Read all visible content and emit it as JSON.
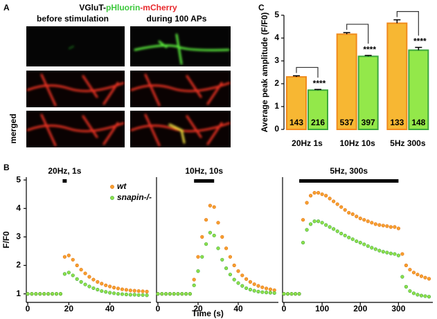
{
  "panel_a": {
    "label": "A",
    "title": [
      {
        "text": "VGluT-",
        "color": "#000000"
      },
      {
        "text": "pHluorin",
        "color": "#3cc83c"
      },
      {
        "text": "-mCherry",
        "color": "#e8262a"
      }
    ],
    "columns": [
      "before stimulation",
      "during 100 APs"
    ],
    "row_label": "merged"
  },
  "chart_data": [
    {
      "type": "bar",
      "panel": "C",
      "ylabel": "Average peak amplitude (F/F0)",
      "categories": [
        "20Hz 1s",
        "10Hz 10s",
        "5Hz 300s"
      ],
      "ylim": [
        0,
        5
      ],
      "yticks": [
        0,
        1,
        2,
        3,
        4,
        5
      ],
      "series": [
        {
          "color": "#f7b733",
          "edge": "#f08a1c",
          "values": [
            2.3,
            4.17,
            4.65
          ],
          "errors": [
            0.05,
            0.07,
            0.15
          ],
          "counts": [
            143,
            537,
            133
          ]
        },
        {
          "color": "#93e84a",
          "edge": "#3ca83c",
          "values": [
            1.72,
            3.2,
            3.47
          ],
          "errors": [
            0.03,
            0.04,
            0.12
          ],
          "counts": [
            216,
            397,
            148
          ]
        }
      ],
      "significance": [
        "****",
        "****",
        "****"
      ]
    },
    {
      "type": "line",
      "panel": "B",
      "ylabel": "F/F0",
      "xlim": [
        0,
        60
      ],
      "xticks": [
        0,
        20,
        40
      ],
      "ylim": [
        0.7,
        5.1
      ],
      "yticks": [
        1,
        2,
        3,
        4,
        5
      ],
      "stimulus": {
        "label": "20Hz, 1s",
        "start": 17,
        "end": 19
      },
      "legend": "top-right",
      "x": [
        0,
        2,
        4,
        6,
        8,
        10,
        12,
        14,
        16,
        18,
        20,
        22,
        24,
        26,
        28,
        30,
        32,
        34,
        36,
        38,
        40,
        42,
        44,
        46,
        48,
        50,
        52,
        54,
        56,
        58
      ],
      "series": [
        {
          "name": "wt",
          "color": "#f7a030",
          "edge": "#e0700c",
          "values": [
            1,
            1,
            1,
            1,
            1,
            1,
            1,
            1,
            1,
            2.3,
            2.35,
            2.2,
            2.0,
            1.85,
            1.72,
            1.6,
            1.5,
            1.42,
            1.36,
            1.3,
            1.26,
            1.22,
            1.19,
            1.16,
            1.14,
            1.12,
            1.11,
            1.1,
            1.09,
            1.08
          ]
        },
        {
          "name": "snapin-/-",
          "color": "#8fe04a",
          "edge": "#3ca83c",
          "values": [
            1,
            1,
            1,
            1,
            1,
            1,
            1,
            1,
            1,
            1.7,
            1.75,
            1.65,
            1.52,
            1.42,
            1.33,
            1.26,
            1.2,
            1.15,
            1.1,
            1.07,
            1.04,
            1.02,
            1.0,
            0.99,
            0.98,
            0.97,
            0.97,
            0.96,
            0.96,
            0.95
          ]
        }
      ]
    },
    {
      "type": "line",
      "xlim": [
        0,
        60
      ],
      "xticks": [
        0,
        20,
        40
      ],
      "ylim": [
        0.7,
        5.1
      ],
      "xlabel": "Time (s)",
      "stimulus": {
        "label": "10Hz, 10s",
        "start": 18,
        "end": 28
      },
      "x": [
        0,
        2,
        4,
        6,
        8,
        10,
        12,
        14,
        16,
        18,
        20,
        22,
        24,
        26,
        28,
        30,
        32,
        34,
        36,
        38,
        40,
        42,
        44,
        46,
        48,
        50,
        52,
        54,
        56,
        58
      ],
      "series": [
        {
          "color": "#f7a030",
          "edge": "#e0700c",
          "values": [
            1,
            1,
            1,
            1,
            1,
            1,
            1,
            1,
            1,
            1.5,
            2.3,
            3.0,
            3.6,
            4.1,
            4.05,
            3.5,
            3.0,
            2.6,
            2.3,
            2.0,
            1.8,
            1.65,
            1.52,
            1.42,
            1.34,
            1.28,
            1.23,
            1.19,
            1.16,
            1.13
          ]
        },
        {
          "color": "#8fe04a",
          "edge": "#3ca83c",
          "values": [
            1,
            1,
            1,
            1,
            1,
            1,
            1,
            1,
            1,
            1.3,
            1.8,
            2.3,
            2.75,
            3.15,
            3.05,
            2.6,
            2.2,
            1.9,
            1.68,
            1.5,
            1.38,
            1.28,
            1.2,
            1.15,
            1.11,
            1.08,
            1.06,
            1.05,
            1.04,
            1.03
          ]
        }
      ]
    },
    {
      "type": "line",
      "xlim": [
        0,
        390
      ],
      "xticks": [
        0,
        100,
        200,
        300
      ],
      "ylim": [
        0.7,
        5.1
      ],
      "stimulus": {
        "label": "5Hz, 300s",
        "start": 40,
        "end": 300
      },
      "x": [
        0,
        10,
        20,
        30,
        40,
        50,
        60,
        70,
        80,
        90,
        100,
        110,
        120,
        130,
        140,
        150,
        160,
        170,
        180,
        190,
        200,
        210,
        220,
        230,
        240,
        250,
        260,
        270,
        280,
        290,
        300,
        310,
        320,
        330,
        340,
        350,
        360,
        370,
        380
      ],
      "series": [
        {
          "color": "#f7a030",
          "edge": "#e0700c",
          "values": [
            1,
            1,
            1,
            1,
            1,
            3.6,
            4.2,
            4.45,
            4.55,
            4.55,
            4.5,
            4.45,
            4.35,
            4.25,
            4.15,
            4.05,
            3.95,
            3.85,
            3.8,
            3.72,
            3.65,
            3.6,
            3.55,
            3.5,
            3.45,
            3.42,
            3.4,
            3.38,
            3.35,
            3.35,
            3.3,
            2.4,
            2.0,
            1.85,
            1.75,
            1.68,
            1.62,
            1.57,
            1.53
          ]
        },
        {
          "color": "#8fe04a",
          "edge": "#3ca83c",
          "values": [
            1,
            1,
            1,
            1,
            1,
            2.8,
            3.25,
            3.45,
            3.55,
            3.55,
            3.5,
            3.42,
            3.35,
            3.28,
            3.2,
            3.12,
            3.05,
            2.98,
            2.92,
            2.85,
            2.8,
            2.74,
            2.68,
            2.62,
            2.57,
            2.52,
            2.48,
            2.45,
            2.42,
            2.4,
            2.35,
            1.6,
            1.25,
            1.1,
            1.02,
            0.97,
            0.94,
            0.92,
            0.9
          ]
        }
      ]
    }
  ]
}
